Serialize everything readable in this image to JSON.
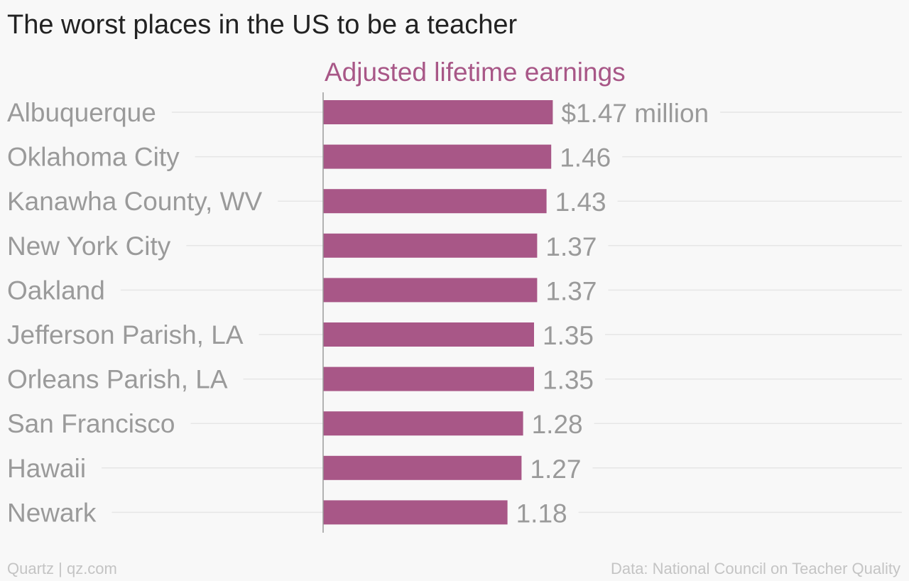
{
  "header": {
    "title": "The worst places in the US to be a teacher"
  },
  "footer": {
    "brand": "Quartz | qz.com",
    "source": "Data: National Council on Teacher Quality"
  },
  "colors": {
    "bar": "#a85787",
    "series_title": "#a85787",
    "label": "#9a9a9a",
    "grid": "#e6e6e6",
    "axis": "#9a9a9a"
  },
  "chart_data": {
    "type": "bar",
    "orientation": "horizontal",
    "title": "The worst places in the US to be a teacher",
    "series": [
      {
        "name": "Adjusted lifetime earnings",
        "values": [
          1.47,
          1.46,
          1.43,
          1.37,
          1.37,
          1.35,
          1.35,
          1.28,
          1.27,
          1.18
        ]
      }
    ],
    "categories": [
      "Albuquerque",
      "Oklahoma City",
      "Kanawha County, WV",
      "New York City",
      "Oakland",
      "Jefferson Parish, LA",
      "Orleans Parish, LA",
      "San Francisco",
      "Hawaii",
      "Newark"
    ],
    "value_labels": [
      "$1.47 million",
      "1.46",
      "1.43",
      "1.37",
      "1.37",
      "1.35",
      "1.35",
      "1.28",
      "1.27",
      "1.18"
    ],
    "xlim": [
      0,
      2.6
    ],
    "grid": true,
    "legend": "none"
  }
}
